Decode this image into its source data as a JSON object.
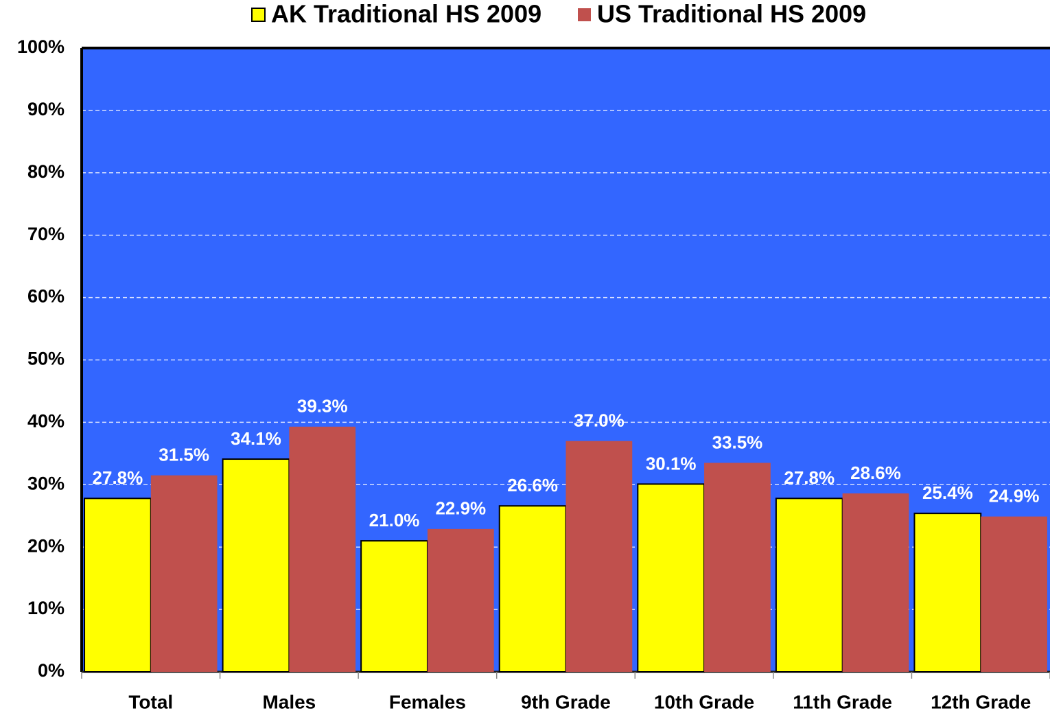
{
  "chart_data": {
    "type": "bar",
    "categories": [
      "Total",
      "Males",
      "Females",
      "9th Grade",
      "10th Grade",
      "11th Grade",
      "12th Grade"
    ],
    "series": [
      {
        "name": "AK Traditional HS 2009",
        "color": "#ffff00",
        "values": [
          27.8,
          34.1,
          21.0,
          26.6,
          30.1,
          27.8,
          25.4
        ],
        "value_labels": [
          "27.8%",
          "34.1%",
          "21.0%",
          "26.6%",
          "30.1%",
          "27.8%",
          "25.4%"
        ]
      },
      {
        "name": "US Traditional HS 2009",
        "color": "#c0504d",
        "values": [
          31.5,
          39.3,
          22.9,
          37.0,
          33.5,
          28.6,
          24.9
        ],
        "value_labels": [
          "31.5%",
          "39.3%",
          "22.9%",
          "37.0%",
          "33.5%",
          "28.6%",
          "24.9%"
        ]
      }
    ],
    "ylim": [
      0,
      100
    ],
    "yticks": [
      {
        "value": 0,
        "label": "0%"
      },
      {
        "value": 10,
        "label": "10%"
      },
      {
        "value": 20,
        "label": "20%"
      },
      {
        "value": 30,
        "label": "30%"
      },
      {
        "value": 40,
        "label": "40%"
      },
      {
        "value": 50,
        "label": "50%"
      },
      {
        "value": 60,
        "label": "60%"
      },
      {
        "value": 70,
        "label": "70%"
      },
      {
        "value": 80,
        "label": "80%"
      },
      {
        "value": 90,
        "label": "90%"
      },
      {
        "value": 100,
        "label": "100%"
      }
    ],
    "grid": true,
    "legend": "top",
    "background": "#3366ff"
  }
}
